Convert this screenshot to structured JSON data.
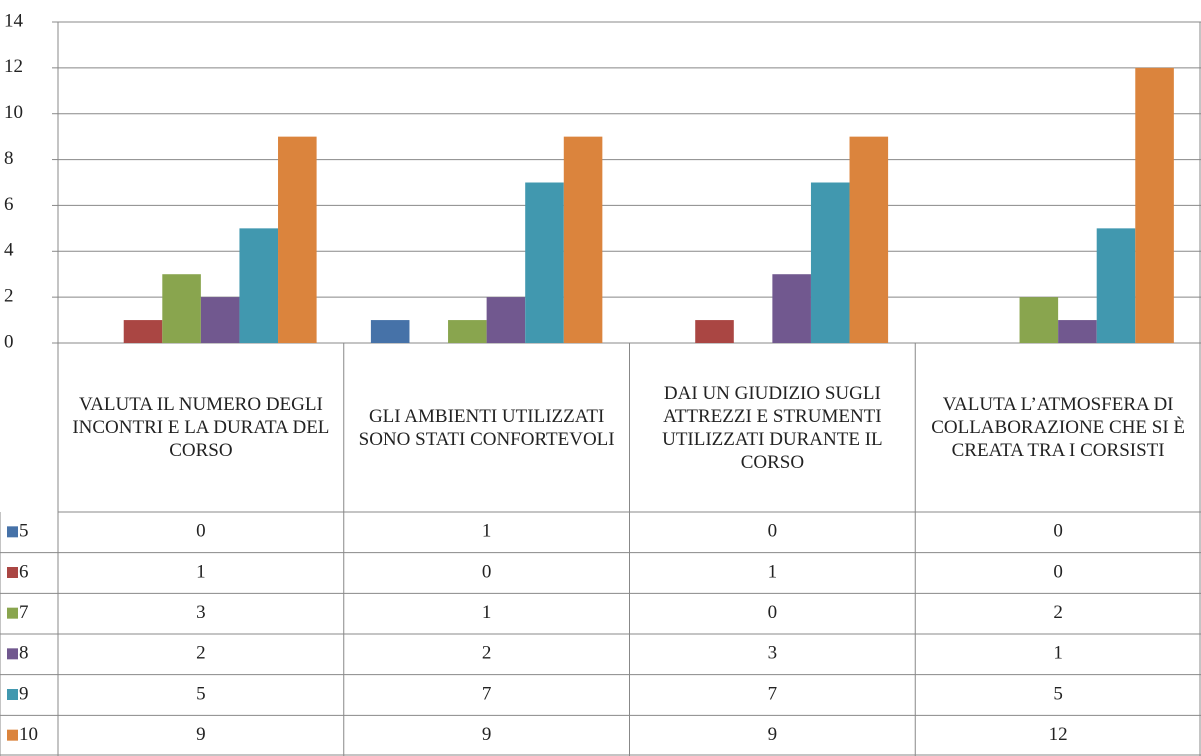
{
  "chart_data": {
    "type": "bar",
    "categories": [
      "VALUTA IL NUMERO DEGLI INCONTRI E LA DURATA DEL CORSO",
      "GLI AMBIENTI UTILIZZATI SONO STATI CONFORTEVOLI",
      "DAI UN GIUDIZIO SUGLI ATTREZZI E STRUMENTI UTILIZZATI DURANTE IL CORSO",
      "VALUTA L’ATMOSFERA DI COLLABORAZIONE CHE SI È CREATA TRA I CORSISTI"
    ],
    "series": [
      {
        "name": "5",
        "color": "#4672a8",
        "values": [
          0,
          1,
          0,
          0
        ]
      },
      {
        "name": "6",
        "color": "#aa4643",
        "values": [
          1,
          0,
          1,
          0
        ]
      },
      {
        "name": "7",
        "color": "#89a54e",
        "values": [
          3,
          1,
          0,
          2
        ]
      },
      {
        "name": "8",
        "color": "#71588f",
        "values": [
          2,
          2,
          3,
          1
        ]
      },
      {
        "name": "9",
        "color": "#4198af",
        "values": [
          5,
          7,
          7,
          5
        ]
      },
      {
        "name": "10",
        "color": "#db843d",
        "values": [
          9,
          9,
          9,
          12
        ]
      }
    ],
    "ylim": [
      0,
      14
    ],
    "yticks": [
      0,
      2,
      4,
      6,
      8,
      10,
      12,
      14
    ],
    "grid": true
  }
}
